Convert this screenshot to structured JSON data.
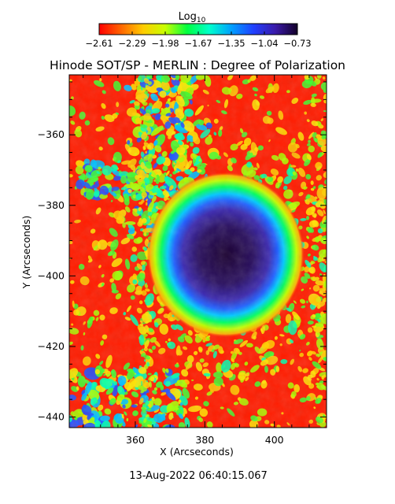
{
  "colorbar": {
    "label": "Log",
    "label_subscript": "10",
    "ticks": [
      "-2.61",
      "-2.29",
      "-1.98",
      "-1.67",
      "-1.35",
      "-1.04",
      "-0.73"
    ],
    "range": [
      -2.61,
      -0.73
    ],
    "colormap": [
      "#ff0000",
      "#ff6600",
      "#ffcc00",
      "#c8ff00",
      "#00ff40",
      "#00ffcc",
      "#00a0ff",
      "#2040ff",
      "#3a1aa8",
      "#120028"
    ]
  },
  "title": "Hinode SOT/SP - MERLIN : Degree of Polarization",
  "map": {
    "xlabel": "X (Arcseconds)",
    "ylabel": "Y (Arcseconds)",
    "xlim": [
      341,
      415
    ],
    "ylim": [
      -443,
      -343
    ],
    "xticks": [
      360,
      380,
      400
    ],
    "yticks": [
      -360,
      -380,
      -400,
      -420,
      -440
    ],
    "xtick_labels": [
      "360",
      "380",
      "400"
    ],
    "ytick_labels": [
      "-360",
      "-380",
      "-400",
      "-420",
      "-440"
    ],
    "sunspot_center": [
      386,
      -394
    ]
  },
  "timestamp": "13-Aug-2022 06:40:15.067"
}
